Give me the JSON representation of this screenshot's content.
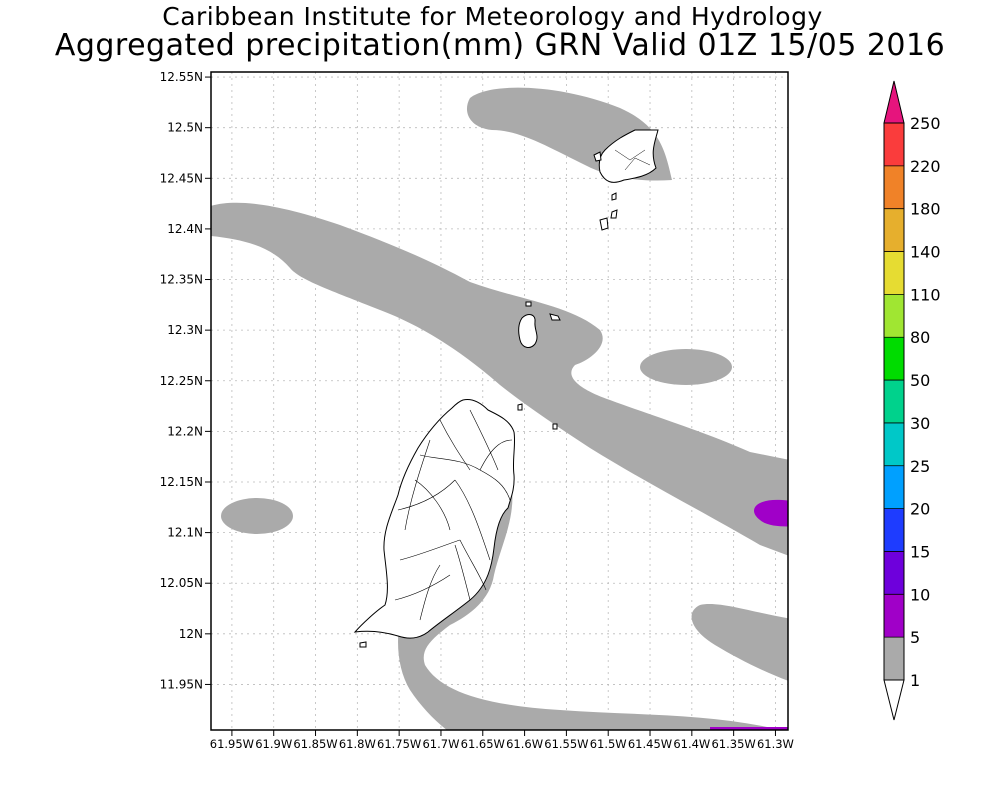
{
  "title_line1": "Caribbean Institute for Meteorology and Hydrology",
  "title_line2": "Aggregated precipitation(mm) GRN Valid 01Z 15/05 2016",
  "map": {
    "lat_range": [
      11.905,
      12.555
    ],
    "lon_range": [
      -61.975,
      -61.285
    ],
    "lat_ticks": [
      {
        "value": 12.55,
        "label": "12.55N"
      },
      {
        "value": 12.5,
        "label": "12.5N"
      },
      {
        "value": 12.45,
        "label": "12.45N"
      },
      {
        "value": 12.4,
        "label": "12.4N"
      },
      {
        "value": 12.35,
        "label": "12.35N"
      },
      {
        "value": 12.3,
        "label": "12.3N"
      },
      {
        "value": 12.25,
        "label": "12.25N"
      },
      {
        "value": 12.2,
        "label": "12.2N"
      },
      {
        "value": 12.15,
        "label": "12.15N"
      },
      {
        "value": 12.1,
        "label": "12.1N"
      },
      {
        "value": 12.05,
        "label": "12.05N"
      },
      {
        "value": 12.0,
        "label": "12N"
      },
      {
        "value": 11.95,
        "label": "11.95N"
      }
    ],
    "lon_ticks": [
      {
        "value": -61.95,
        "label": "61.95W"
      },
      {
        "value": -61.9,
        "label": "61.9W"
      },
      {
        "value": -61.85,
        "label": "61.85W"
      },
      {
        "value": -61.8,
        "label": "61.8W"
      },
      {
        "value": -61.75,
        "label": "61.75W"
      },
      {
        "value": -61.7,
        "label": "61.7W"
      },
      {
        "value": -61.65,
        "label": "61.65W"
      },
      {
        "value": -61.6,
        "label": "61.6W"
      },
      {
        "value": -61.55,
        "label": "61.55W"
      },
      {
        "value": -61.5,
        "label": "61.5W"
      },
      {
        "value": -61.45,
        "label": "61.45W"
      },
      {
        "value": -61.4,
        "label": "61.4W"
      },
      {
        "value": -61.35,
        "label": "61.35W"
      },
      {
        "value": -61.3,
        "label": "61.3W"
      }
    ],
    "grid": true
  },
  "colorbar": {
    "levels": [
      {
        "label": "1",
        "color": "#aaaaaa"
      },
      {
        "label": "5",
        "color": "#a000c8"
      },
      {
        "label": "10",
        "color": "#6e00dc"
      },
      {
        "label": "15",
        "color": "#1e3cff"
      },
      {
        "label": "20",
        "color": "#00a0ff"
      },
      {
        "label": "25",
        "color": "#00c8c8"
      },
      {
        "label": "30",
        "color": "#00d28c"
      },
      {
        "label": "50",
        "color": "#00dc00"
      },
      {
        "label": "80",
        "color": "#a0e632"
      },
      {
        "label": "110",
        "color": "#e6dc32"
      },
      {
        "label": "140",
        "color": "#e6af2d"
      },
      {
        "label": "180",
        "color": "#f08228"
      },
      {
        "label": "220",
        "color": "#fa3c3c"
      },
      {
        "label": "250",
        "color": "#f00082"
      }
    ],
    "below_color": "#ffffff",
    "above_color": "#e6147d"
  }
}
